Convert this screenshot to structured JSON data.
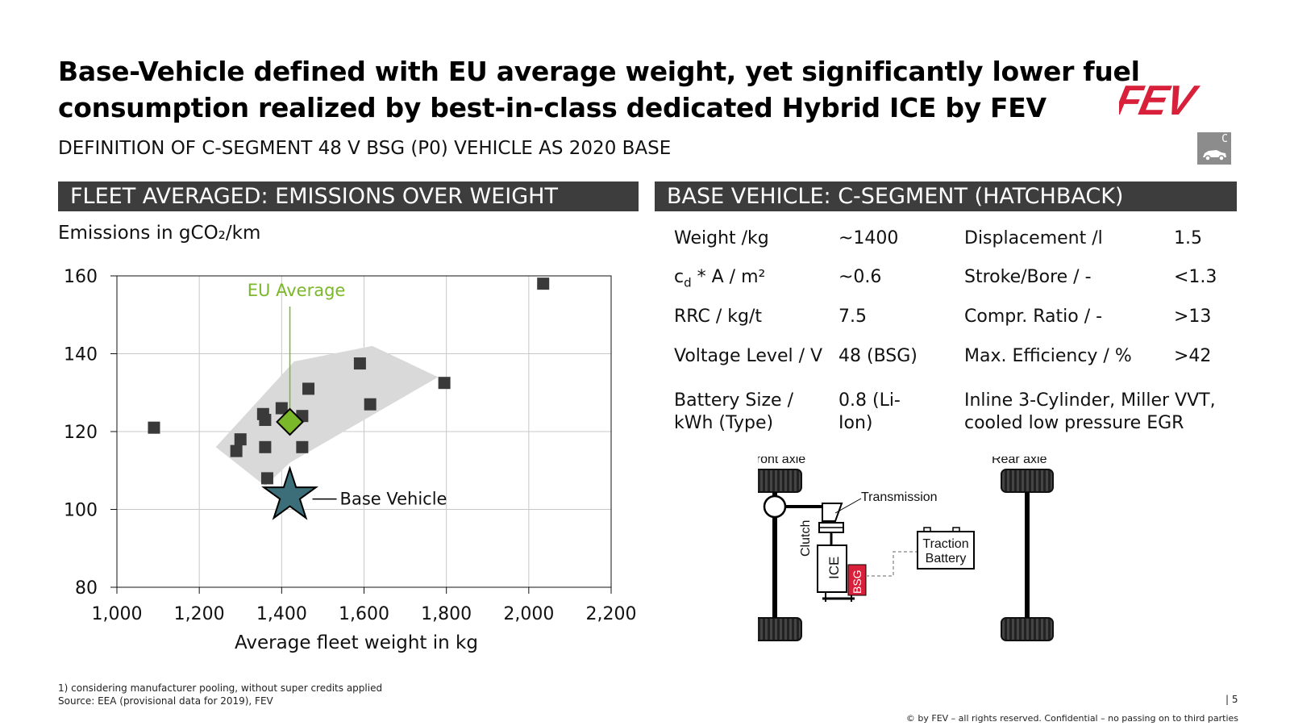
{
  "title_lines": [
    "Base-Vehicle defined with EU average weight, yet significantly lower fuel",
    "consumption realized by best-in-class dedicated Hybrid ICE by FEV"
  ],
  "subtitle": "DEFINITION OF C-SEGMENT 48 V BSG (P0) VEHICLE AS 2020 BASE",
  "logo_text": "FEV",
  "segment_icon": {
    "letter": "C",
    "icon": "car-icon"
  },
  "left_section_title": "FLEET AVERAGED: EMISSIONS OVER WEIGHT",
  "right_section_title": "BASE VEHICLE: C-SEGMENT (HATCHBACK)",
  "chart_data": {
    "type": "scatter",
    "ylabel": "Emissions in gCO₂/km",
    "xlabel": "Average fleet weight in kg",
    "xlim": [
      1000,
      2200
    ],
    "ylim": [
      80,
      160
    ],
    "x_ticks": [
      1000,
      1200,
      1400,
      1600,
      1800,
      2000,
      2200
    ],
    "x_tick_labels": [
      "1,000",
      "1,200",
      "1,400",
      "1,600",
      "1,800",
      "2,000",
      "2,200"
    ],
    "y_ticks": [
      80,
      100,
      120,
      140,
      160
    ],
    "y_tick_labels": [
      "80",
      "100",
      "120",
      "140",
      "160"
    ],
    "grid": true,
    "series": [
      {
        "marker": "square",
        "color": "#3a3a3a",
        "points": [
          {
            "x": 1090,
            "y": 121
          },
          {
            "x": 1290,
            "y": 115
          },
          {
            "x": 1300,
            "y": 118
          },
          {
            "x": 1355,
            "y": 124.5
          },
          {
            "x": 1360,
            "y": 123
          },
          {
            "x": 1360,
            "y": 116
          },
          {
            "x": 1365,
            "y": 108
          },
          {
            "x": 1400,
            "y": 126
          },
          {
            "x": 1450,
            "y": 124
          },
          {
            "x": 1450,
            "y": 116
          },
          {
            "x": 1465,
            "y": 131
          },
          {
            "x": 1590,
            "y": 137.5
          },
          {
            "x": 1615,
            "y": 127
          },
          {
            "x": 1795,
            "y": 132.5
          },
          {
            "x": 2035,
            "y": 158
          }
        ]
      }
    ],
    "highlights": [
      {
        "label": "EU Average",
        "marker": "diamond",
        "color": "#7ab829",
        "x": 1420,
        "y": 122.5
      },
      {
        "label": "Base Vehicle",
        "marker": "star",
        "color": "#3b6e78",
        "x": 1420,
        "y": 103.5
      }
    ],
    "band": {
      "color": "#d9d9d9",
      "polygon": [
        {
          "x": 1240,
          "y": 116
        },
        {
          "x": 1430,
          "y": 138
        },
        {
          "x": 1620,
          "y": 142
        },
        {
          "x": 1780,
          "y": 134
        },
        {
          "x": 1420,
          "y": 112
        },
        {
          "x": 1360,
          "y": 106
        }
      ]
    }
  },
  "specs": [
    {
      "label": "Weight /kg",
      "value": "~1400",
      "label2": "Displacement /l",
      "value2": "1.5"
    },
    {
      "label": "c",
      "label_sub": "d",
      "label_rest": " * A / m²",
      "value": "~0.6",
      "label2": "Stroke/Bore / -",
      "value2": "<1.3"
    },
    {
      "label": "RRC / kg/t",
      "value": "7.5",
      "label2": "Compr. Ratio / -",
      "value2": ">13"
    },
    {
      "label": "Voltage Level / V",
      "value": "48 (BSG)",
      "label2": "Max. Efficiency / %",
      "value2": ">42"
    },
    {
      "label_lines": [
        "Battery Size /",
        "kWh (Type)"
      ],
      "value_lines": [
        "0.8 (Li-",
        "Ion)"
      ],
      "label2_lines": [
        "Inline 3-Cylinder, Miller VVT,",
        "cooled low pressure EGR"
      ]
    }
  ],
  "drivetrain": {
    "front_axle": "Front axle",
    "rear_axle": "Rear axle",
    "transmission": "Transmission",
    "clutch": "Clutch",
    "ice": "ICE",
    "bsg": "BSG",
    "battery_lines": [
      "Traction",
      "Battery"
    ],
    "bsg_color": "#d8203a"
  },
  "footnotes": [
    "1) considering manufacturer pooling, without super credits applied",
    "Source: EEA (provisional data for 2019), FEV"
  ],
  "page_number": "| 5",
  "copyright": "© by FEV – all rights reserved. Confidential – no passing on to third parties"
}
